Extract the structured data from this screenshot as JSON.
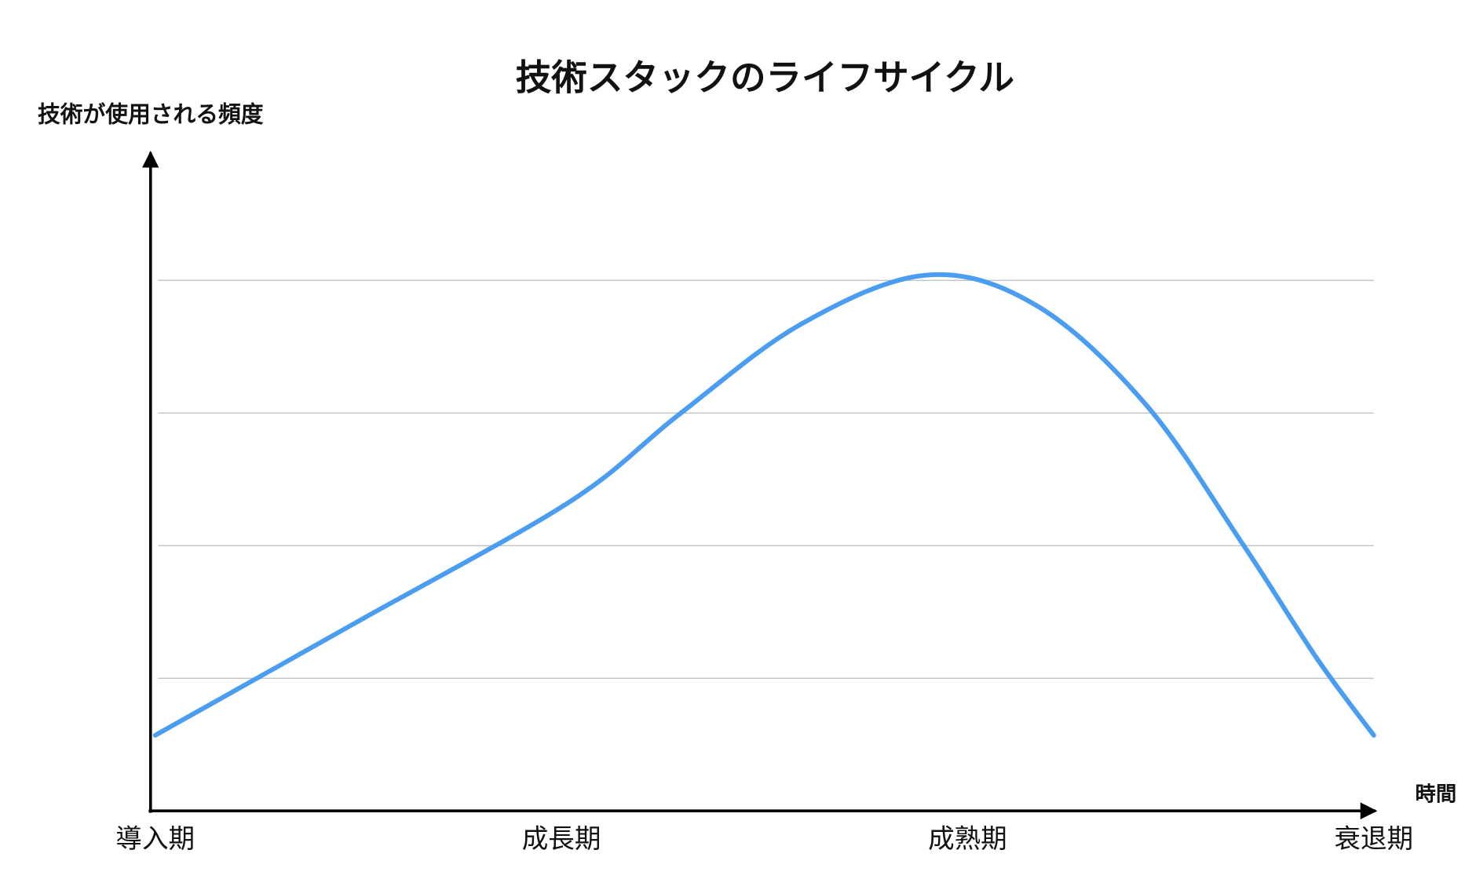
{
  "chart_data": {
    "type": "line",
    "title": "技術スタックのライフサイクル",
    "y_label": "技術が使用される頻度",
    "x_label": "時間",
    "x": [
      0,
      0.5,
      1.02,
      1.29,
      1.59,
      1.9,
      2.17,
      2.44,
      2.68,
      2.86,
      3
    ],
    "series": [
      {
        "color": "#4a9df0",
        "values": [
          0.57,
          1.43,
          2.33,
          2.99,
          3.67,
          4.04,
          3.81,
          3.06,
          2.0,
          1.15,
          0.57
        ]
      }
    ],
    "xlim": [
      0,
      3
    ],
    "xticks": [
      {
        "value": 0,
        "label": "導入期"
      },
      {
        "value": 1,
        "label": "成長期"
      },
      {
        "value": 2,
        "label": "成熟期"
      },
      {
        "value": 3,
        "label": "衰退期"
      }
    ],
    "ylim": [
      0,
      5
    ],
    "yticks": [
      1,
      2,
      3,
      4
    ],
    "grid": true
  }
}
